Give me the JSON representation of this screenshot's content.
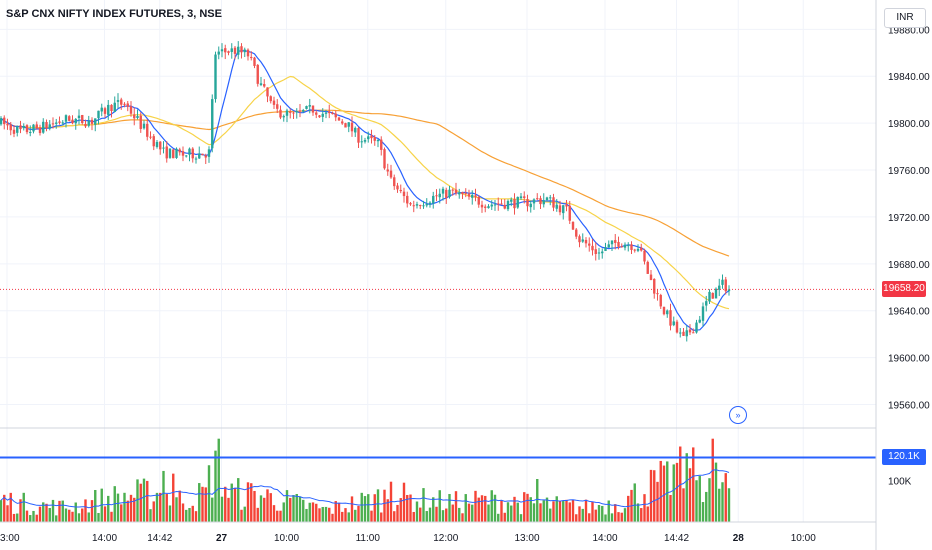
{
  "header": {
    "symbol_title": "S&P CNX NIFTY INDEX FUTURES, 3, NSE",
    "currency": "INR"
  },
  "price_axis": {
    "ticks": [
      "19880.00",
      "19840.00",
      "19800.00",
      "19760.00",
      "19720.00",
      "19680.00",
      "19640.00",
      "19600.00",
      "19560.00"
    ],
    "last_price_label": "19658.20",
    "last_price_color": "#f23645"
  },
  "volume_axis": {
    "tick": "100K",
    "level_label": "120.1K",
    "level_color": "#2962ff"
  },
  "time_axis": {
    "labels": [
      "13:00",
      "14:00",
      "14:42",
      "27",
      "10:00",
      "11:00",
      "12:00",
      "13:00",
      "14:00",
      "14:42",
      "28",
      "10:00"
    ]
  },
  "colors": {
    "up": "#26a69a",
    "down": "#ef5350",
    "vol_up": "#4caf50",
    "vol_down": "#f44336",
    "ma_fast": "#2962ff",
    "ma_mid": "#f7d348",
    "ma_slow": "#f7a035"
  },
  "chart_data": {
    "type": "candlestick",
    "ylim": [
      19540,
      19905
    ],
    "volume_ylim": [
      0,
      160000
    ],
    "price_anchors": [
      [
        0,
        19800
      ],
      [
        6,
        19793
      ],
      [
        12,
        19796
      ],
      [
        20,
        19803
      ],
      [
        28,
        19802
      ],
      [
        34,
        19815
      ],
      [
        38,
        19817
      ],
      [
        44,
        19795
      ],
      [
        50,
        19775
      ],
      [
        56,
        19773
      ],
      [
        64,
        19775
      ],
      [
        66,
        19860
      ],
      [
        72,
        19862
      ],
      [
        76,
        19858
      ],
      [
        80,
        19832
      ],
      [
        84,
        19811
      ],
      [
        90,
        19806
      ],
      [
        96,
        19812
      ],
      [
        100,
        19807
      ],
      [
        106,
        19800
      ],
      [
        110,
        19788
      ],
      [
        116,
        19782
      ],
      [
        120,
        19750
      ],
      [
        126,
        19730
      ],
      [
        132,
        19736
      ],
      [
        138,
        19741
      ],
      [
        144,
        19736
      ],
      [
        150,
        19731
      ],
      [
        156,
        19732
      ],
      [
        162,
        19733
      ],
      [
        168,
        19735
      ],
      [
        174,
        19725
      ],
      [
        178,
        19701
      ],
      [
        184,
        19689
      ],
      [
        190,
        19699
      ],
      [
        196,
        19695
      ],
      [
        200,
        19665
      ],
      [
        204,
        19640
      ],
      [
        208,
        19622
      ],
      [
        210,
        19615
      ],
      [
        214,
        19630
      ],
      [
        218,
        19652
      ],
      [
        222,
        19662
      ],
      [
        224,
        19660
      ]
    ],
    "volume_anchors": [
      [
        0,
        45000
      ],
      [
        10,
        35000
      ],
      [
        20,
        30000
      ],
      [
        30,
        45000
      ],
      [
        40,
        55000
      ],
      [
        48,
        60000
      ],
      [
        54,
        45000
      ],
      [
        60,
        50000
      ],
      [
        63,
        60000
      ],
      [
        66,
        130000
      ],
      [
        70,
        60000
      ],
      [
        80,
        55000
      ],
      [
        90,
        40000
      ],
      [
        100,
        25000
      ],
      [
        110,
        40000
      ],
      [
        120,
        55000
      ],
      [
        130,
        45000
      ],
      [
        140,
        40000
      ],
      [
        150,
        45000
      ],
      [
        160,
        40000
      ],
      [
        170,
        35000
      ],
      [
        180,
        30000
      ],
      [
        190,
        40000
      ],
      [
        196,
        60000
      ],
      [
        204,
        85000
      ],
      [
        210,
        100000
      ],
      [
        216,
        95000
      ],
      [
        220,
        85000
      ],
      [
        224,
        70000
      ]
    ],
    "volume_spikes": [
      [
        50,
        95000
      ],
      [
        53,
        90000
      ],
      [
        67,
        155000
      ],
      [
        120,
        75000
      ],
      [
        165,
        80000
      ],
      [
        204,
        105000
      ],
      [
        208,
        110000
      ],
      [
        212,
        100000
      ],
      [
        219,
        155000
      ]
    ],
    "gap_index": 66,
    "bar_count": 225,
    "last_close": 19658.2,
    "volume_level": 120100
  }
}
